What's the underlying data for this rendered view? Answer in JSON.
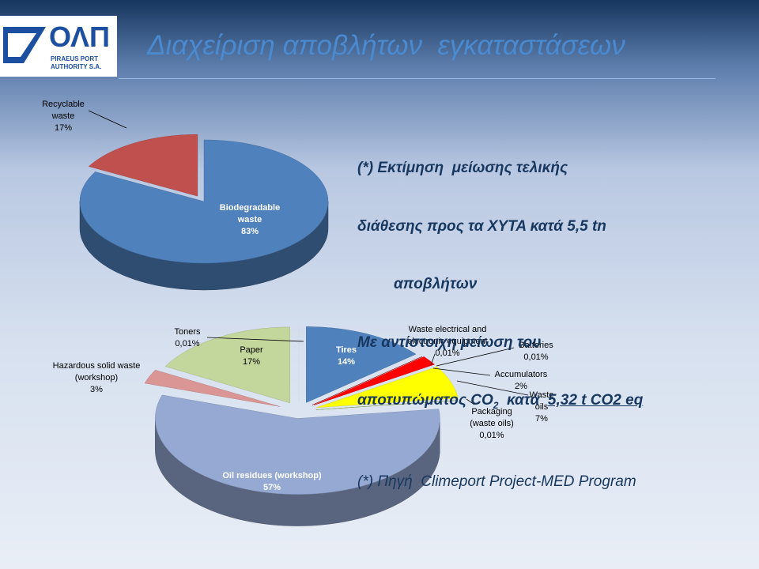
{
  "title": "Διαχείριση αποβλήτων  εγκαταστάσεων",
  "logo": {
    "mark": "ΟΛΠ",
    "line1": "PIRAEUS PORT",
    "line2": "AUTHORITY S.A."
  },
  "notes": {
    "line1": "(*) Εκτίμηση  μείωσης τελικής",
    "line2a": "διάθεσης προς τα ΧΥΤΑ κατά ",
    "line2b": "5,5 tn",
    "line3": "αποβλήτων",
    "line4": "Με αντίστοιχη μείωση του",
    "line5a": "αποτυπώματος CO",
    "line5sub": "2",
    "line5b": "  κατά  ",
    "line5c": "5,32 t CO2 eq",
    "source": "(*) Πηγή  Climeport Project-MED Program"
  },
  "chart_data": [
    {
      "type": "pie",
      "categories": [
        "Biodegradable waste",
        "Recyclable waste"
      ],
      "values": [
        83,
        17
      ],
      "value_labels": [
        "83%",
        "17%"
      ],
      "colors": [
        "#4f81bd",
        "#c0504d"
      ]
    },
    {
      "type": "pie",
      "categories": [
        "Tires",
        "Waste electrical and electronic equipment",
        "Batteries",
        "Accumulators",
        "Waste oils",
        "Packaging (waste oils)",
        "Oil residues (workshop)",
        "Hazardous solid waste (workshop)",
        "Paper",
        "Toners"
      ],
      "values": [
        14,
        0.01,
        0.01,
        2,
        7,
        0.01,
        57,
        3,
        17,
        0.01
      ],
      "value_labels": [
        "14%",
        "0,01%",
        "0,01%",
        "2%",
        "7%",
        "0,01%",
        "57%",
        "3%",
        "17%",
        "0,01%"
      ],
      "colors": [
        "#4f81bd",
        "#7f7f7f",
        "#c00000",
        "#ff0000",
        "#ffff00",
        "#9bbb59",
        "#95a9d3",
        "#d99694",
        "#c3d69b",
        "#ffffff"
      ]
    }
  ]
}
